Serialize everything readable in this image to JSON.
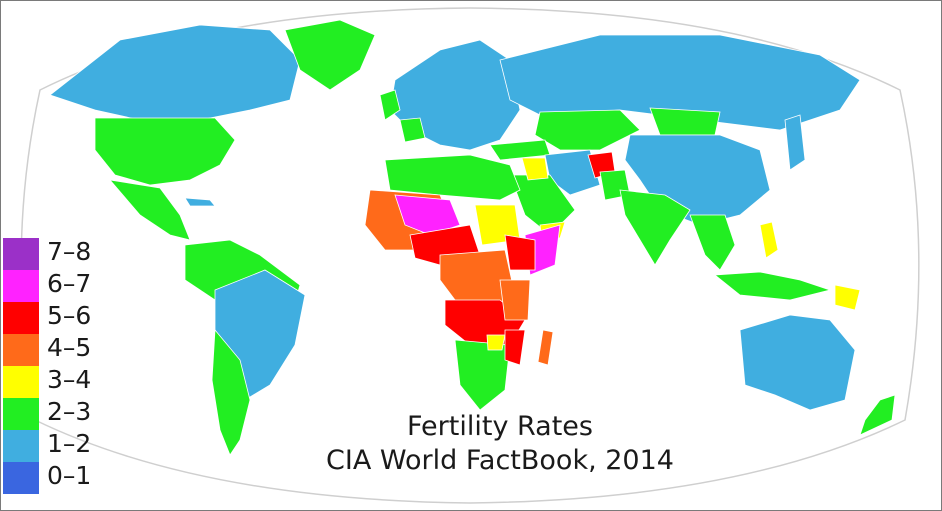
{
  "map": {
    "ocean_color": "#ffffff",
    "border_color": "#ffffff",
    "legend": [
      {
        "label": "7–8",
        "color": "#9b30c8"
      },
      {
        "label": "6–7",
        "color": "#ff22ff"
      },
      {
        "label": "5–6",
        "color": "#ff0000"
      },
      {
        "label": "4–5",
        "color": "#ff6a1a"
      },
      {
        "label": "3–4",
        "color": "#ffff00"
      },
      {
        "label": "2–3",
        "color": "#22ee22"
      },
      {
        "label": "1–2",
        "color": "#40aee0"
      },
      {
        "label": "0–1",
        "color": "#3a66e0"
      }
    ],
    "caption": {
      "line1": "Fertility Rates",
      "line2": "CIA World FactBook, 2014"
    }
  }
}
